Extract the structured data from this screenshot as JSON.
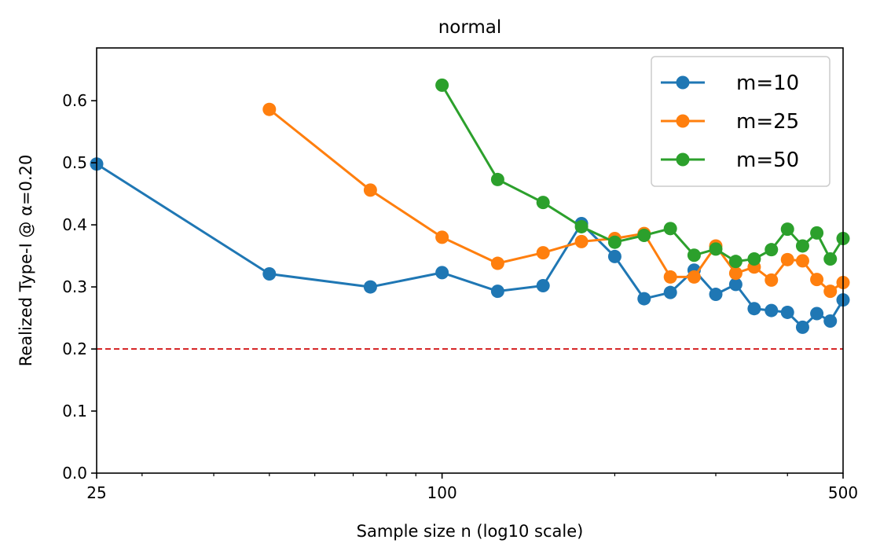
{
  "chart_data": {
    "type": "line",
    "title": "normal",
    "xlabel": "Sample size n (log10 scale)",
    "ylabel": "Realized Type-I @ α=0.20",
    "xscale": "log10",
    "xlim": [
      25,
      500
    ],
    "ylim": [
      0,
      0.685
    ],
    "xticks": [
      25,
      100,
      500
    ],
    "xtick_labels": [
      "25",
      "100",
      "500"
    ],
    "x_minor_ticks": [
      30,
      40,
      50,
      60,
      70,
      80,
      90,
      200,
      300,
      400
    ],
    "yticks": [
      0.0,
      0.1,
      0.2,
      0.3,
      0.4,
      0.5,
      0.6
    ],
    "ytick_labels": [
      "0.0",
      "0.1",
      "0.2",
      "0.3",
      "0.4",
      "0.5",
      "0.6"
    ],
    "legend_position": "top-right",
    "reference_line": {
      "y": 0.2,
      "color": "#d62728",
      "style": "dashed"
    },
    "series": [
      {
        "name": "m=10",
        "color": "#1f77b4",
        "x": [
          25,
          50,
          75,
          100,
          125,
          150,
          175,
          200,
          225,
          250,
          275,
          300,
          325,
          350,
          375,
          400,
          425,
          450,
          475,
          500
        ],
        "values": [
          0.498,
          0.321,
          0.3,
          0.323,
          0.293,
          0.302,
          0.402,
          0.349,
          0.281,
          0.291,
          0.327,
          0.288,
          0.304,
          0.265,
          0.262,
          0.259,
          0.235,
          0.257,
          0.245,
          0.279
        ]
      },
      {
        "name": "m=25",
        "color": "#ff7f0e",
        "x": [
          50,
          75,
          100,
          125,
          150,
          175,
          200,
          225,
          250,
          275,
          300,
          325,
          350,
          375,
          400,
          425,
          450,
          475,
          500
        ],
        "values": [
          0.586,
          0.456,
          0.38,
          0.338,
          0.355,
          0.373,
          0.378,
          0.386,
          0.316,
          0.316,
          0.366,
          0.322,
          0.332,
          0.311,
          0.344,
          0.342,
          0.312,
          0.293,
          0.307
        ]
      },
      {
        "name": "m=50",
        "color": "#2ca02c",
        "x": [
          100,
          125,
          150,
          175,
          200,
          225,
          250,
          275,
          300,
          325,
          350,
          375,
          400,
          425,
          450,
          475,
          500
        ],
        "values": [
          0.625,
          0.473,
          0.436,
          0.397,
          0.372,
          0.383,
          0.394,
          0.351,
          0.361,
          0.341,
          0.345,
          0.36,
          0.393,
          0.366,
          0.387,
          0.345,
          0.378
        ]
      }
    ]
  }
}
